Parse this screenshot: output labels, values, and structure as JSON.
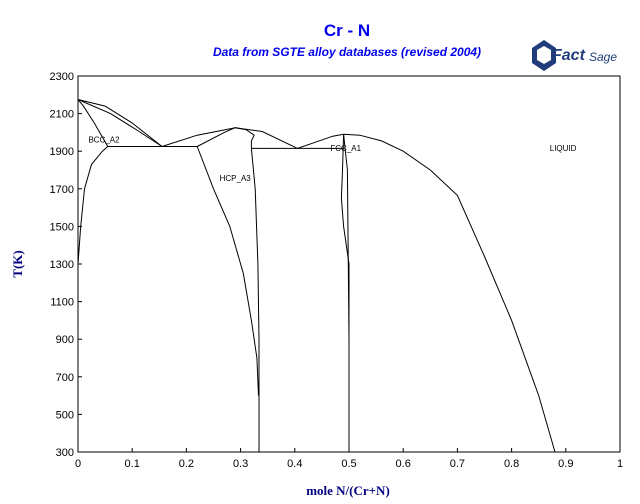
{
  "title": "Cr - N",
  "subtitle": "Data from SGTE alloy databases (revised 2004)",
  "logo": {
    "main": "Fact",
    "sub": "Sage"
  },
  "chart_data": {
    "type": "line",
    "title": "Cr - N",
    "subtitle": "Data from SGTE alloy databases (revised 2004)",
    "xlabel": "mole N/(Cr+N)",
    "ylabel": "T(K)",
    "xlim": [
      0,
      1
    ],
    "ylim": [
      300,
      2300
    ],
    "xticks": [
      "0",
      "0.1",
      "0.2",
      "0.3",
      "0.4",
      "0.5",
      "0.6",
      "0.7",
      "0.8",
      "0.9",
      "1"
    ],
    "yticks": [
      "2300",
      "2100",
      "1900",
      "1700",
      "1500",
      "1300",
      "1100",
      "900",
      "700",
      "500",
      "300"
    ],
    "regions": [
      {
        "label": "BCC_A2",
        "x": 0.048,
        "y": 1945
      },
      {
        "label": "HCP_A3",
        "x": 0.29,
        "y": 1742
      },
      {
        "label": "FCC_A1",
        "x": 0.494,
        "y": 1900
      },
      {
        "label": "LIQUID",
        "x": 0.895,
        "y": 1900
      }
    ],
    "series": [
      {
        "points": [
          [
            0,
            2175
          ],
          [
            0.05,
            2140
          ],
          [
            0.1,
            2050
          ],
          [
            0.155,
            1925
          ]
        ]
      },
      {
        "points": [
          [
            0,
            2175
          ],
          [
            0.06,
            2100
          ],
          [
            0.11,
            2010
          ],
          [
            0.155,
            1925
          ]
        ]
      },
      {
        "points": [
          [
            0,
            1300
          ],
          [
            0.005,
            1500
          ],
          [
            0.012,
            1700
          ],
          [
            0.025,
            1830
          ],
          [
            0.045,
            1900
          ],
          [
            0.055,
            1925
          ]
        ]
      },
      {
        "points": [
          [
            0.055,
            1925
          ],
          [
            0.03,
            2050
          ],
          [
            0.01,
            2140
          ],
          [
            0,
            2175
          ]
        ]
      },
      {
        "points": [
          [
            0.155,
            1925
          ],
          [
            0.22,
            1985
          ],
          [
            0.29,
            2025
          ],
          [
            0.34,
            2005
          ],
          [
            0.405,
            1915
          ]
        ]
      },
      {
        "points": [
          [
            0.22,
            1925
          ],
          [
            0.27,
            2000
          ],
          [
            0.29,
            2025
          ],
          [
            0.31,
            2015
          ],
          [
            0.325,
            1985
          ],
          [
            0.32,
            1955
          ],
          [
            0.32,
            1915
          ]
        ]
      },
      {
        "points": [
          [
            0.22,
            1925
          ],
          [
            0.25,
            1700
          ],
          [
            0.28,
            1500
          ],
          [
            0.305,
            1250
          ],
          [
            0.32,
            1000
          ],
          [
            0.33,
            800
          ],
          [
            0.333,
            600
          ]
        ]
      },
      {
        "points": [
          [
            0.32,
            1915
          ],
          [
            0.327,
            1700
          ],
          [
            0.332,
            1300
          ],
          [
            0.334,
            900
          ],
          [
            0.334,
            600
          ]
        ]
      },
      {
        "points": [
          [
            0.405,
            1915
          ],
          [
            0.43,
            1940
          ],
          [
            0.47,
            1980
          ],
          [
            0.49,
            1990
          ],
          [
            0.52,
            1985
          ],
          [
            0.56,
            1955
          ],
          [
            0.6,
            1900
          ],
          [
            0.65,
            1800
          ],
          [
            0.7,
            1665
          ],
          [
            0.75,
            1340
          ],
          [
            0.8,
            1000
          ],
          [
            0.85,
            600
          ],
          [
            0.88,
            300
          ]
        ]
      },
      {
        "points": [
          [
            0.49,
            1990
          ],
          [
            0.497,
            1800
          ],
          [
            0.5,
            900
          ]
        ]
      },
      {
        "points": [
          [
            0.49,
            1990
          ],
          [
            0.488,
            1800
          ],
          [
            0.486,
            1650
          ],
          [
            0.49,
            1500
          ],
          [
            0.5,
            1300
          ],
          [
            0.5,
            300
          ]
        ]
      }
    ],
    "horizontal_segments": [
      {
        "x1": 0.055,
        "x2": 0.22,
        "y": 1925
      },
      {
        "x1": 0.32,
        "x2": 0.492,
        "y": 1915
      }
    ],
    "vertical_segments": [
      {
        "x": 0.334,
        "y1": 300,
        "y2": 600
      },
      {
        "x": 0.5,
        "y1": 300,
        "y2": 900
      }
    ]
  }
}
